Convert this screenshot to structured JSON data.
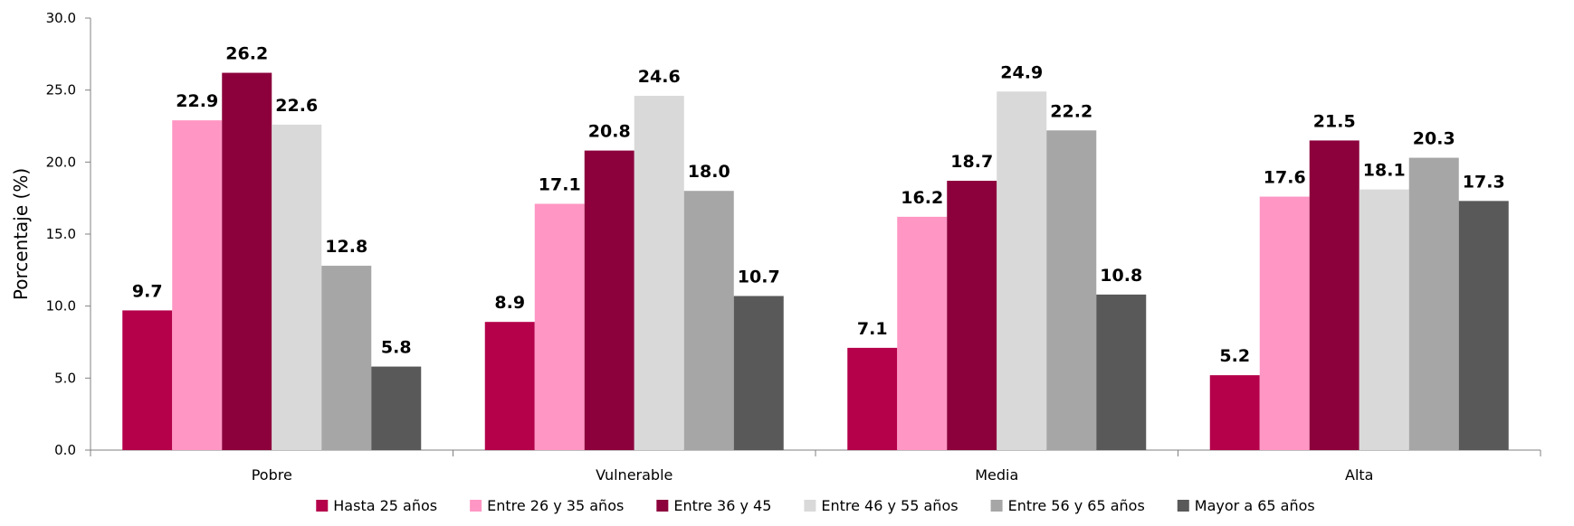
{
  "chart_data": {
    "type": "bar",
    "title": "",
    "xlabel": "",
    "ylabel": "Porcentaje (%)",
    "ylim": [
      0,
      30
    ],
    "yticks": [
      "0.0",
      "5.0",
      "10.0",
      "15.0",
      "20.0",
      "25.0",
      "30.0"
    ],
    "grid": false,
    "legend_position": "bottom",
    "categories": [
      "Pobre",
      "Vulnerable",
      "Media",
      "Alta"
    ],
    "series": [
      {
        "name": "Hasta 25 años",
        "color": "#B5004A",
        "values": [
          9.7,
          8.9,
          7.1,
          5.2
        ],
        "labels": [
          "9.7",
          "8.9",
          "7.1",
          "5.2"
        ]
      },
      {
        "name": "Entre 26 y 35 años",
        "color": "#FF96C3",
        "values": [
          22.9,
          17.1,
          16.2,
          17.6
        ],
        "labels": [
          "22.9",
          "17.1",
          "16.2",
          "17.6"
        ]
      },
      {
        "name": "Entre 36 y 45",
        "color": "#8C003C",
        "values": [
          26.2,
          20.8,
          18.7,
          21.5
        ],
        "labels": [
          "26.2",
          "20.8",
          "18.7",
          "21.5"
        ]
      },
      {
        "name": "Entre 46 y 55 años",
        "color": "#D9D9D9",
        "values": [
          22.6,
          24.6,
          24.9,
          18.1
        ],
        "labels": [
          "22.6",
          "24.6",
          "24.9",
          "18.1"
        ]
      },
      {
        "name": "Entre 56 y 65 años",
        "color": "#A6A6A6",
        "values": [
          12.8,
          18.0,
          22.2,
          20.3
        ],
        "labels": [
          "12.8",
          "18.0",
          "22.2",
          "20.3"
        ]
      },
      {
        "name": "Mayor a 65 años",
        "color": "#595959",
        "values": [
          5.8,
          10.7,
          10.8,
          17.3
        ],
        "labels": [
          "5.8",
          "10.7",
          "10.8",
          "17.3"
        ]
      }
    ]
  }
}
